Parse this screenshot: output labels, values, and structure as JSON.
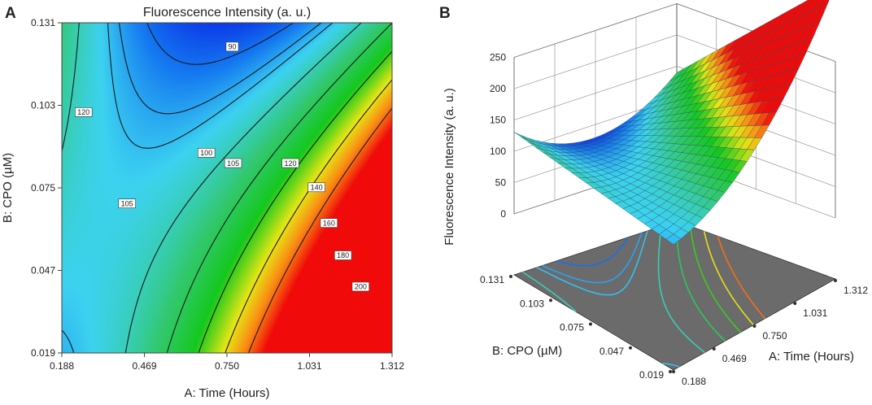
{
  "chart_data": [
    {
      "panel": "A",
      "type": "contour",
      "title": "Fluorescence Intensity (a. u.)",
      "xlabel": "A: Time (Hours)",
      "ylabel": "B: CPO (µM)",
      "xlim": [
        0.188,
        1.312
      ],
      "ylim": [
        0.019,
        0.131
      ],
      "xticks": [
        "0.188",
        "0.469",
        "0.750",
        "1.031",
        "1.312"
      ],
      "yticks": [
        "0.019",
        "0.047",
        "0.075",
        "0.103",
        "0.131"
      ],
      "levels": [
        90,
        100,
        105,
        120,
        140,
        160,
        180,
        200
      ],
      "contour_labels": [
        {
          "text": "90",
          "x": 0.768,
          "y": 0.1229
        },
        {
          "text": "120",
          "x": 0.262,
          "y": 0.1007
        },
        {
          "text": "100",
          "x": 0.68,
          "y": 0.0869
        },
        {
          "text": "105",
          "x": 0.771,
          "y": 0.0834
        },
        {
          "text": "120",
          "x": 0.966,
          "y": 0.0834
        },
        {
          "text": "105",
          "x": 0.41,
          "y": 0.0697
        },
        {
          "text": "140",
          "x": 1.055,
          "y": 0.0752
        },
        {
          "text": "160",
          "x": 1.097,
          "y": 0.0631
        },
        {
          "text": "180",
          "x": 1.145,
          "y": 0.0521
        },
        {
          "text": "200",
          "x": 1.205,
          "y": 0.0415
        }
      ]
    },
    {
      "panel": "B",
      "type": "surface3d",
      "zlabel": "Fluorescence Intensity (a. u.)",
      "xlabel": "A: Time (Hours)",
      "ylabel": "B: CPO (µM)",
      "zlim": [
        0,
        250
      ],
      "zticks": [
        "0",
        "50",
        "100",
        "150",
        "200",
        "250"
      ],
      "xticks": [
        "0.188",
        "0.469",
        "0.750",
        "1.031",
        "1.312"
      ],
      "yticks": [
        "0.019",
        "0.047",
        "0.075",
        "0.103",
        "0.131"
      ],
      "corner_values": {
        "time_0.188_cpo_0.019": 108,
        "time_0.188_cpo_0.131": 125,
        "time_1.312_cpo_0.019": 210,
        "time_1.312_cpo_0.131": 220,
        "min_region": 90
      }
    }
  ],
  "panel_labels": [
    "A",
    "B"
  ]
}
